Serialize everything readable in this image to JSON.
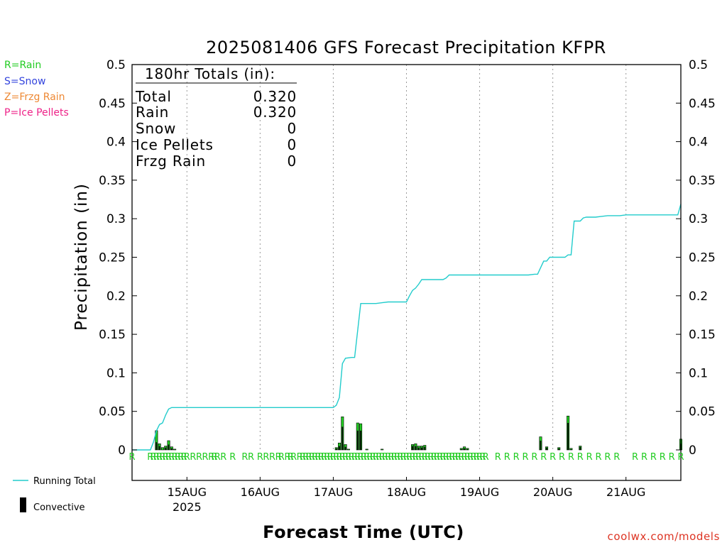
{
  "chart_data": {
    "type": "bar",
    "title": "2025081406 GFS Forecast Precipitation KFPR",
    "ylabel": "Precipitation (in)",
    "xlabel": "Forecast Time (UTC)",
    "ylim": [
      0,
      0.5
    ],
    "xlim_hours": [
      0,
      180
    ],
    "yticks": [
      0,
      0.05,
      0.1,
      0.15,
      0.2,
      0.25,
      0.3,
      0.35,
      0.4,
      0.45,
      0.5
    ],
    "ytick_labels": [
      "0",
      "0.05",
      "0.1",
      "0.15",
      "0.2",
      "0.25",
      "0.3",
      "0.35",
      "0.4",
      "0.45",
      "0.5"
    ],
    "xticks": [
      {
        "hour": 18,
        "label": "15AUG",
        "sublabel": "2025"
      },
      {
        "hour": 42,
        "label": "16AUG",
        "sublabel": ""
      },
      {
        "hour": 66,
        "label": "17AUG",
        "sublabel": ""
      },
      {
        "hour": 90,
        "label": "18AUG",
        "sublabel": ""
      },
      {
        "hour": 114,
        "label": "19AUG",
        "sublabel": ""
      },
      {
        "hour": 138,
        "label": "20AUG",
        "sublabel": ""
      },
      {
        "hour": 162,
        "label": "21AUG",
        "sublabel": ""
      }
    ],
    "grid": true,
    "legend_types": [
      {
        "label": "R=Rain",
        "color": "#22cc22"
      },
      {
        "label": "S=Snow",
        "color": "#3344dd"
      },
      {
        "label": "Z=Frzg Rain",
        "color": "#ee8833"
      },
      {
        "label": "P=Ice Pellets",
        "color": "#ee2288"
      }
    ],
    "legend_series": {
      "running_total": {
        "label": "Running Total",
        "color": "#22cccc"
      },
      "convective": {
        "label": "Convective",
        "color": "#000000"
      }
    },
    "totals": {
      "heading": "180hr Totals (in):",
      "rows": [
        {
          "label": "Total",
          "value": "0.320"
        },
        {
          "label": "Rain",
          "value": "0.320"
        },
        {
          "label": "Snow",
          "value": "0"
        },
        {
          "label": "Ice Pellets",
          "value": "0"
        },
        {
          "label": "Frzg Rain",
          "value": "0"
        }
      ]
    },
    "precip_color": "#22cc22",
    "running_total": {
      "x": [
        0,
        6,
        7,
        8,
        9,
        10,
        11,
        12,
        13,
        66,
        67,
        68,
        69,
        70,
        72,
        73,
        74,
        75,
        76,
        77,
        80,
        82,
        84,
        86,
        88,
        90,
        91,
        92,
        93,
        94,
        95,
        98,
        100,
        102,
        103,
        104,
        108,
        110,
        112,
        114,
        130,
        132,
        133,
        135,
        136,
        137,
        140,
        142,
        143,
        144,
        145,
        146,
        147,
        148,
        149,
        150,
        152,
        154,
        156,
        158,
        160,
        162,
        170,
        179,
        180
      ],
      "y": [
        0,
        0,
        0.01,
        0.025,
        0.033,
        0.035,
        0.045,
        0.053,
        0.055,
        0.055,
        0.058,
        0.068,
        0.112,
        0.119,
        0.12,
        0.12,
        0.155,
        0.19,
        0.19,
        0.19,
        0.19,
        0.191,
        0.192,
        0.192,
        0.192,
        0.192,
        0.2,
        0.207,
        0.21,
        0.215,
        0.221,
        0.221,
        0.221,
        0.221,
        0.223,
        0.227,
        0.227,
        0.227,
        0.227,
        0.227,
        0.227,
        0.228,
        0.228,
        0.245,
        0.245,
        0.25,
        0.25,
        0.25,
        0.253,
        0.253,
        0.297,
        0.297,
        0.297,
        0.301,
        0.302,
        0.302,
        0.302,
        0.303,
        0.304,
        0.304,
        0.304,
        0.305,
        0.305,
        0.305,
        0.319
      ]
    },
    "bars": {
      "x": [
        8,
        9,
        10,
        11,
        12,
        13,
        14,
        67,
        68,
        69,
        70,
        71,
        74,
        75,
        77,
        82,
        92,
        93,
        94,
        95,
        96,
        108,
        109,
        110,
        134,
        136,
        140,
        143,
        144,
        147,
        180
      ],
      "y": [
        0.025,
        0.008,
        0.003,
        0.005,
        0.012,
        0.004,
        0.001,
        0.003,
        0.009,
        0.043,
        0.007,
        0.001,
        0.035,
        0.034,
        0.001,
        0.001,
        0.007,
        0.008,
        0.005,
        0.005,
        0.006,
        0.002,
        0.004,
        0.002,
        0.017,
        0.004,
        0.003,
        0.044,
        0.002,
        0.005,
        0.014
      ],
      "convective": [
        0.01,
        0.005,
        0.0,
        0.003,
        0.007,
        0.002,
        0.0,
        0.002,
        0.005,
        0.03,
        0.004,
        0.0,
        0.025,
        0.025,
        0.0,
        0.0,
        0.005,
        0.005,
        0.003,
        0.003,
        0.004,
        0.001,
        0.002,
        0.001,
        0.012,
        0.003,
        0.002,
        0.035,
        0.001,
        0.004,
        0.008
      ]
    },
    "type_markers": {
      "symbol": "R",
      "x": [
        0,
        6,
        7,
        8,
        9,
        10,
        11,
        12,
        13,
        14,
        15,
        16,
        17,
        18,
        20,
        22,
        24,
        26,
        27,
        28,
        30,
        33,
        37,
        39,
        42,
        44,
        46,
        48,
        49,
        51,
        52,
        53,
        55,
        56,
        57,
        58,
        59,
        60,
        61,
        62,
        63,
        64,
        65,
        66,
        67,
        68,
        69,
        70,
        71,
        72,
        73,
        74,
        75,
        76,
        77,
        78,
        79,
        80,
        81,
        82,
        83,
        84,
        85,
        86,
        87,
        88,
        89,
        90,
        91,
        92,
        93,
        94,
        95,
        96,
        97,
        98,
        99,
        100,
        101,
        102,
        103,
        104,
        105,
        106,
        107,
        108,
        109,
        110,
        111,
        112,
        113,
        114,
        115,
        116,
        120,
        123,
        126,
        129,
        132,
        135,
        138,
        141,
        144,
        147,
        150,
        153,
        156,
        159,
        165,
        168,
        171,
        174,
        177,
        180
      ]
    }
  },
  "credit": "coolwx.com/models"
}
